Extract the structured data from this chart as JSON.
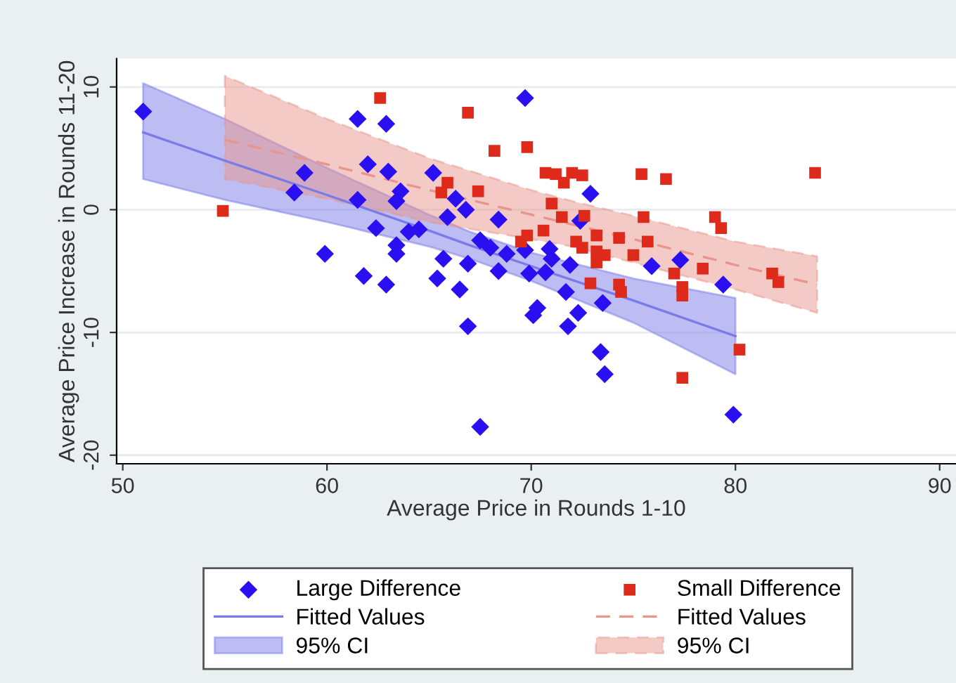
{
  "chart_data": {
    "type": "scatter",
    "xlabel": "Average Price in Rounds 1-10",
    "ylabel": "Average Price Increase in Rounds 11-20",
    "xlim": [
      49.7,
      90.8
    ],
    "ylim": [
      -20.7,
      12.3
    ],
    "xticks": [
      50,
      60,
      70,
      80,
      90
    ],
    "yticks": [
      -20,
      -10,
      0,
      10
    ],
    "grid": "y",
    "legend": "bottom",
    "series": [
      {
        "name": "Large Difference",
        "color": "#2a10f0",
        "marker": "diamond",
        "x": [
          51,
          58.9,
          58.4,
          61.5,
          62.9,
          62.0,
          63.0,
          63.6,
          63.4,
          61.5,
          62.4,
          64.0,
          63.4,
          63.4,
          59.9,
          61.8,
          62.9,
          69.7,
          65.2,
          66.3,
          66.8,
          68.4,
          65.9,
          64.5,
          72.9,
          72.4,
          67.5,
          68.0,
          68.8,
          69.7,
          70.9,
          71.0,
          71.9,
          65.7,
          66.9,
          68.4,
          69.9,
          70.7,
          65.4,
          66.5,
          71.7,
          73.5,
          70.3,
          70.1,
          72.3,
          71.8,
          66.9,
          73.4,
          73.6,
          67.5,
          75.9,
          77.3,
          79.4,
          79.9
        ],
        "values": [
          8.0,
          3.0,
          1.4,
          7.4,
          7.0,
          3.7,
          3.1,
          1.5,
          0.7,
          0.8,
          -1.5,
          -1.8,
          -2.9,
          -3.6,
          -3.6,
          -5.4,
          -6.1,
          9.1,
          3.0,
          0.9,
          0.0,
          -0.8,
          -0.6,
          -1.6,
          1.3,
          -0.9,
          -2.5,
          -3.1,
          -3.6,
          -3.3,
          -3.2,
          -4.0,
          -4.5,
          -4.0,
          -4.4,
          -5.0,
          -5.2,
          -5.1,
          -5.6,
          -6.5,
          -6.7,
          -7.6,
          -8.0,
          -8.6,
          -8.4,
          -9.5,
          -9.5,
          -11.6,
          -13.4,
          -17.7,
          -4.6,
          -4.1,
          -6.1,
          -16.7
        ]
      },
      {
        "type": "line",
        "name": "Fitted Values",
        "color": "#7b7be8",
        "line_style": "solid",
        "x": [
          51,
          55,
          60,
          65,
          67,
          70,
          75,
          80
        ],
        "values": [
          6.3,
          4.0,
          1.2,
          -1.7,
          -2.9,
          -4.6,
          -7.4,
          -10.3
        ],
        "upper": [
          10.3,
          7.4,
          3.4,
          -0.4,
          -1.8,
          -3.5,
          -5.6,
          -7.2
        ],
        "lower": [
          2.5,
          0.8,
          -1.0,
          -3.0,
          -4.0,
          -5.8,
          -9.2,
          -13.4
        ]
      },
      {
        "name": "Small Difference",
        "color": "#dd2a1a",
        "marker": "square",
        "x": [
          62.6,
          54.9,
          66.9,
          68.2,
          69.8,
          65.9,
          65.6,
          67.4,
          70.7,
          71.2,
          71.6,
          72.0,
          72.5,
          75.4,
          76.6,
          71.0,
          71.5,
          72.6,
          75.5,
          73.2,
          74.3,
          69.8,
          70.6,
          69.5,
          72.2,
          72.5,
          73.2,
          73.6,
          75.0,
          75.7,
          73.2,
          72.9,
          74.3,
          74.4,
          77.0,
          77.4,
          77.4,
          77.4,
          83.9,
          79.0,
          79.3,
          78.4,
          81.8,
          82.1,
          80.2
        ],
        "values": [
          9.1,
          -0.1,
          7.9,
          4.8,
          5.1,
          2.2,
          1.4,
          1.5,
          3.0,
          2.9,
          2.2,
          3.0,
          2.8,
          2.9,
          2.5,
          0.5,
          -0.6,
          -0.5,
          -0.6,
          -2.1,
          -2.3,
          -2.1,
          -1.7,
          -2.6,
          -2.6,
          -3.1,
          -3.4,
          -3.7,
          -3.7,
          -2.6,
          -4.3,
          -6.0,
          -6.1,
          -6.7,
          -5.2,
          -6.3,
          -7.0,
          -13.7,
          3.0,
          -0.6,
          -1.5,
          -4.8,
          -5.2,
          -5.9,
          -11.4
        ]
      },
      {
        "type": "line",
        "name": "Fitted Values",
        "color": "#e8958c",
        "line_style": "dashed",
        "x": [
          55,
          60,
          65,
          70,
          72,
          75,
          80,
          84
        ],
        "values": [
          5.7,
          3.7,
          1.6,
          -0.4,
          -1.2,
          -2.4,
          -4.5,
          -6.1
        ],
        "upper": [
          10.9,
          7.4,
          4.2,
          1.6,
          0.7,
          -0.5,
          -2.6,
          -3.8
        ],
        "lower": [
          2.5,
          0.9,
          -1.0,
          -2.4,
          -3.0,
          -4.3,
          -6.5,
          -8.4
        ]
      }
    ],
    "annotations": [
      "95% CI",
      "95% CI"
    ]
  }
}
